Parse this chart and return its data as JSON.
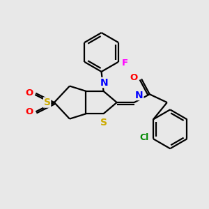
{
  "background_color": "#e8e8e8",
  "atom_colors": {
    "C": "#000000",
    "N": "#0000ff",
    "O": "#ff0000",
    "S": "#ccaa00",
    "F": "#ff00ff",
    "Cl": "#008800"
  },
  "bond_color": "#000000",
  "line_width": 1.6,
  "font_size": 8.5
}
